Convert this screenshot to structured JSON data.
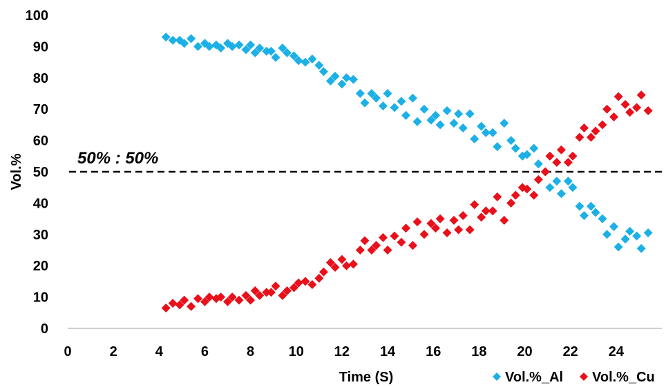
{
  "chart_data": {
    "type": "scatter",
    "xlabel": "Time (S)",
    "ylabel": "Vol.%",
    "xlim": [
      0,
      26
    ],
    "ylim": [
      0,
      100
    ],
    "x_ticks": [
      "0",
      "2",
      "4",
      "6",
      "8",
      "10",
      "12",
      "14",
      "16",
      "18",
      "20",
      "22",
      "24"
    ],
    "y_ticks": [
      "0",
      "10",
      "20",
      "30",
      "40",
      "50",
      "60",
      "70",
      "80",
      "90",
      "100"
    ],
    "grid": false,
    "legend_position": "bottom-right",
    "annotation": {
      "text": "50% : 50%",
      "reference_line_y": 50,
      "line_style": "dashed"
    },
    "series": [
      {
        "name": "Vol.%_Al",
        "color": "#1CB0E6",
        "marker": "diamond",
        "points": [
          [
            4.3,
            93
          ],
          [
            4.6,
            92
          ],
          [
            4.9,
            92
          ],
          [
            5.1,
            91
          ],
          [
            5.4,
            92.5
          ],
          [
            5.7,
            90
          ],
          [
            6.0,
            91
          ],
          [
            6.2,
            90
          ],
          [
            6.5,
            90.5
          ],
          [
            6.7,
            89.5
          ],
          [
            7.0,
            91
          ],
          [
            7.2,
            90
          ],
          [
            7.5,
            90.5
          ],
          [
            7.8,
            89
          ],
          [
            8.0,
            90.5
          ],
          [
            8.2,
            88
          ],
          [
            8.4,
            89.5
          ],
          [
            8.7,
            88.5
          ],
          [
            8.9,
            88.5
          ],
          [
            9.1,
            86.5
          ],
          [
            9.4,
            89.5
          ],
          [
            9.6,
            88
          ],
          [
            9.9,
            87
          ],
          [
            10.1,
            85.5
          ],
          [
            10.4,
            85
          ],
          [
            10.7,
            86
          ],
          [
            11.0,
            84
          ],
          [
            11.2,
            82
          ],
          [
            11.5,
            79
          ],
          [
            11.7,
            80.5
          ],
          [
            12.0,
            78
          ],
          [
            12.2,
            80
          ],
          [
            12.5,
            79.5
          ],
          [
            12.8,
            75
          ],
          [
            13.0,
            72
          ],
          [
            13.3,
            75
          ],
          [
            13.5,
            73.5
          ],
          [
            13.8,
            71
          ],
          [
            14.0,
            75
          ],
          [
            14.3,
            70.5
          ],
          [
            14.6,
            72.5
          ],
          [
            14.8,
            68
          ],
          [
            15.1,
            73.5
          ],
          [
            15.3,
            66
          ],
          [
            15.6,
            70
          ],
          [
            15.9,
            66.5
          ],
          [
            16.1,
            68
          ],
          [
            16.3,
            65
          ],
          [
            16.6,
            69.5
          ],
          [
            16.9,
            65.5
          ],
          [
            17.1,
            68.5
          ],
          [
            17.3,
            64
          ],
          [
            17.6,
            68.5
          ],
          [
            17.8,
            60.5
          ],
          [
            18.1,
            64.5
          ],
          [
            18.3,
            62.5
          ],
          [
            18.6,
            62.5
          ],
          [
            18.8,
            58
          ],
          [
            19.1,
            65.5
          ],
          [
            19.4,
            60
          ],
          [
            19.6,
            57.5
          ],
          [
            19.9,
            55
          ],
          [
            20.1,
            55.5
          ],
          [
            20.4,
            57.5
          ],
          [
            20.6,
            52.5
          ],
          [
            20.9,
            50
          ],
          [
            21.1,
            45
          ],
          [
            21.4,
            47
          ],
          [
            21.6,
            43
          ],
          [
            21.9,
            47
          ],
          [
            22.1,
            45
          ],
          [
            22.4,
            39
          ],
          [
            22.6,
            36
          ],
          [
            22.9,
            39
          ],
          [
            23.1,
            37
          ],
          [
            23.4,
            35
          ],
          [
            23.6,
            30
          ],
          [
            23.9,
            32.5
          ],
          [
            24.1,
            26
          ],
          [
            24.4,
            28.5
          ],
          [
            24.6,
            31
          ],
          [
            24.9,
            29.5
          ],
          [
            25.1,
            25.5
          ],
          [
            25.4,
            30.5
          ]
        ]
      },
      {
        "name": "Vol.%_Cu",
        "color": "#E8101A",
        "marker": "diamond",
        "points": [
          [
            4.3,
            6.5
          ],
          [
            4.6,
            8
          ],
          [
            4.9,
            7.5
          ],
          [
            5.1,
            9
          ],
          [
            5.4,
            7
          ],
          [
            5.7,
            9.5
          ],
          [
            6.0,
            8.5
          ],
          [
            6.2,
            10
          ],
          [
            6.5,
            9.5
          ],
          [
            6.7,
            10
          ],
          [
            7.0,
            8.5
          ],
          [
            7.2,
            10
          ],
          [
            7.5,
            9
          ],
          [
            7.8,
            10.5
          ],
          [
            8.0,
            9
          ],
          [
            8.2,
            12
          ],
          [
            8.4,
            10.5
          ],
          [
            8.7,
            11.5
          ],
          [
            8.9,
            11.5
          ],
          [
            9.1,
            13.5
          ],
          [
            9.4,
            10.5
          ],
          [
            9.6,
            12
          ],
          [
            9.9,
            13
          ],
          [
            10.1,
            14.5
          ],
          [
            10.4,
            15
          ],
          [
            10.7,
            14
          ],
          [
            11.0,
            16
          ],
          [
            11.2,
            18
          ],
          [
            11.5,
            21
          ],
          [
            11.7,
            19.5
          ],
          [
            12.0,
            22
          ],
          [
            12.2,
            20
          ],
          [
            12.5,
            20.5
          ],
          [
            12.8,
            25
          ],
          [
            13.0,
            28
          ],
          [
            13.3,
            25
          ],
          [
            13.5,
            26.5
          ],
          [
            13.8,
            29
          ],
          [
            14.0,
            25
          ],
          [
            14.3,
            29.5
          ],
          [
            14.6,
            27.5
          ],
          [
            14.8,
            32
          ],
          [
            15.1,
            26.5
          ],
          [
            15.3,
            34
          ],
          [
            15.6,
            30
          ],
          [
            15.9,
            33.5
          ],
          [
            16.1,
            32
          ],
          [
            16.3,
            35
          ],
          [
            16.6,
            30.5
          ],
          [
            16.9,
            34.5
          ],
          [
            17.1,
            31.5
          ],
          [
            17.3,
            36
          ],
          [
            17.6,
            31.5
          ],
          [
            17.8,
            39.5
          ],
          [
            18.1,
            35.5
          ],
          [
            18.3,
            37.5
          ],
          [
            18.6,
            37.5
          ],
          [
            18.8,
            42
          ],
          [
            19.1,
            34.5
          ],
          [
            19.4,
            40
          ],
          [
            19.6,
            42.5
          ],
          [
            19.9,
            45
          ],
          [
            20.1,
            44.5
          ],
          [
            20.4,
            42.5
          ],
          [
            20.6,
            47.5
          ],
          [
            20.9,
            50
          ],
          [
            21.1,
            55
          ],
          [
            21.4,
            53
          ],
          [
            21.6,
            57
          ],
          [
            21.9,
            53
          ],
          [
            22.1,
            55
          ],
          [
            22.4,
            61
          ],
          [
            22.6,
            64
          ],
          [
            22.9,
            61
          ],
          [
            23.1,
            63
          ],
          [
            23.4,
            65
          ],
          [
            23.6,
            70
          ],
          [
            23.9,
            67.5
          ],
          [
            24.1,
            74
          ],
          [
            24.4,
            71.5
          ],
          [
            24.6,
            69
          ],
          [
            24.9,
            70.5
          ],
          [
            25.1,
            74.5
          ],
          [
            25.4,
            69.5
          ]
        ]
      }
    ]
  }
}
